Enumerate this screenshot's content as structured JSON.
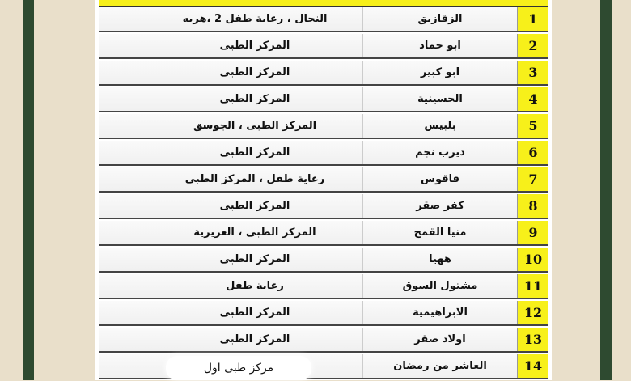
{
  "colors": {
    "background": "#e9dfca",
    "frame": "#2e4a30",
    "highlight": "#f7f01a"
  },
  "rows": [
    {
      "num": "1",
      "name": "الزقازيق",
      "value": "النحال ، رعاية طفل 2 ،هريه"
    },
    {
      "num": "2",
      "name": "ابو حماد",
      "value": "المركز الطبى"
    },
    {
      "num": "3",
      "name": "ابو كبير",
      "value": "المركز الطبى"
    },
    {
      "num": "4",
      "name": "الحسينية",
      "value": "المركز الطبى"
    },
    {
      "num": "5",
      "name": "بلبيس",
      "value": "المركز الطبى ، الجوسق"
    },
    {
      "num": "6",
      "name": "ديرب نجم",
      "value": "المركز الطبى"
    },
    {
      "num": "7",
      "name": "فاقوس",
      "value": "رعاية طفل ، المركز الطبى"
    },
    {
      "num": "8",
      "name": "كفر صقر",
      "value": "المركز الطبى"
    },
    {
      "num": "9",
      "name": "منيا القمح",
      "value": "المركز الطبى ، العزيزية"
    },
    {
      "num": "10",
      "name": "ههيا",
      "value": "المركز الطبى"
    },
    {
      "num": "11",
      "name": "مشتول السوق",
      "value": "رعاية طفل"
    },
    {
      "num": "12",
      "name": "الابراهيمية",
      "value": "المركز الطبى"
    },
    {
      "num": "13",
      "name": "اولاد صقر",
      "value": "المركز الطبى"
    },
    {
      "num": "14",
      "name": "العاشر من رمضان",
      "value": ""
    }
  ],
  "overlay_note": "مركز طبى اول"
}
